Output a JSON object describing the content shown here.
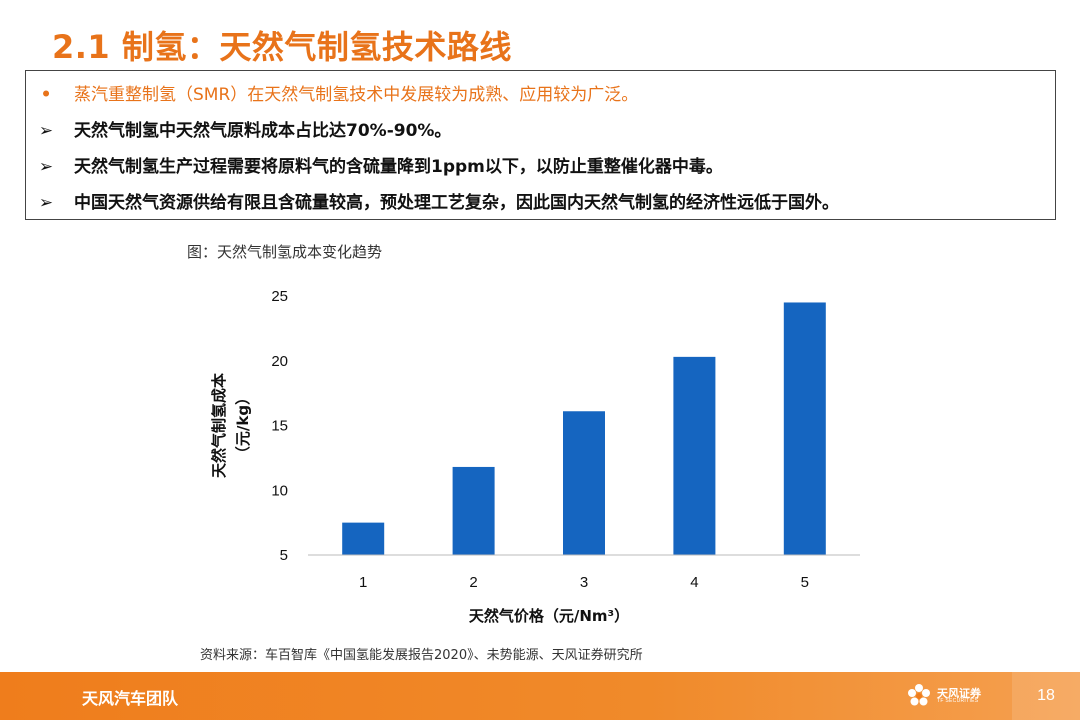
{
  "title": "2.1 制氢：天然气制氢技术路线",
  "bullets": [
    {
      "marker": "•",
      "text": "蒸汽重整制氢（SMR）在天然气制氢技术中发展较为成熟、应用较为广泛。",
      "style": "orange"
    },
    {
      "marker": "➢",
      "text": "天然气制氢中天然气原料成本占比达70%-90%。",
      "style": "dark"
    },
    {
      "marker": "➢",
      "text": "天然气制氢生产过程需要将原料气的含硫量降到1ppm以下，以防止重整催化器中毒。",
      "style": "dark"
    },
    {
      "marker": "➢",
      "text": "中国天然气资源供给有限且含硫量较高，预处理工艺复杂，因此国内天然气制氢的经济性远低于国外。",
      "style": "dark"
    }
  ],
  "figure_caption": "图：天然气制氢成本变化趋势",
  "chart_data": {
    "type": "bar",
    "categories": [
      "1",
      "2",
      "3",
      "4",
      "5"
    ],
    "values": [
      7.5,
      11.8,
      16.1,
      20.3,
      24.5
    ],
    "ylim": [
      5,
      25
    ],
    "yticks": [
      "5",
      "10",
      "15",
      "20",
      "25"
    ],
    "xlabel": "天然气价格（元/Nm³）",
    "ylabel": "天然气制氢成本",
    "ylabel_unit": "（元/kg）",
    "grid": false,
    "bar_color": "#1565c0"
  },
  "source": "资料来源：车百智库《中国氢能发展报告2020》、未势能源、天风证券研究所",
  "footer": {
    "team": "天风汽车团队",
    "logo_cn": "天风证券",
    "logo_en": "TF SECURITIES",
    "page": "18"
  },
  "colors": {
    "accent": "#e8731a",
    "footer": "#ef7d1c",
    "bar": "#1565c0"
  }
}
